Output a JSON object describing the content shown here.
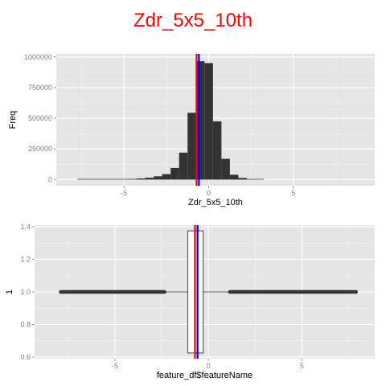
{
  "title": "Zdr_5x5_10th",
  "colors": {
    "title": "#ff0000",
    "panel_bg": "#e5e5e5",
    "grid_major": "#ffffff",
    "grid_minor": "#f2f2f2",
    "bar_fill": "#333333",
    "red_line": "#ff0000",
    "blue_line": "#0000ff",
    "box_fill": "#ffffff",
    "outline": "#333333"
  },
  "chart_data": [
    {
      "type": "bar",
      "subtype": "histogram",
      "xlabel": "Zdr_5x5_10th",
      "ylabel": "Freq",
      "xlim": [
        -9,
        9.8
      ],
      "ylim": [
        -50000,
        1025000
      ],
      "x_ticks": [
        -5,
        0,
        5
      ],
      "x_tick_labels": [
        "-5",
        "0",
        "5"
      ],
      "y_ticks": [
        0,
        250000,
        500000,
        750000,
        1000000
      ],
      "y_tick_labels": [
        "0",
        "250000",
        "500000",
        "750000",
        "1000000"
      ],
      "grid": true,
      "bin_width": 0.5,
      "bins": [
        {
          "x0": -7.75,
          "x1": -7.25,
          "count": 1000
        },
        {
          "x0": -7.25,
          "x1": -6.75,
          "count": 1000
        },
        {
          "x0": -6.75,
          "x1": -6.25,
          "count": 1500
        },
        {
          "x0": -6.25,
          "x1": -5.75,
          "count": 1500
        },
        {
          "x0": -5.75,
          "x1": -5.25,
          "count": 2000
        },
        {
          "x0": -5.25,
          "x1": -4.75,
          "count": 3000
        },
        {
          "x0": -4.75,
          "x1": -4.25,
          "count": 6000
        },
        {
          "x0": -4.25,
          "x1": -3.75,
          "count": 10000
        },
        {
          "x0": -3.75,
          "x1": -3.25,
          "count": 16000
        },
        {
          "x0": -3.25,
          "x1": -2.75,
          "count": 27000
        },
        {
          "x0": -2.75,
          "x1": -2.25,
          "count": 45000
        },
        {
          "x0": -2.25,
          "x1": -1.75,
          "count": 95000
        },
        {
          "x0": -1.75,
          "x1": -1.25,
          "count": 220000
        },
        {
          "x0": -1.25,
          "x1": -0.75,
          "count": 545000
        },
        {
          "x0": -0.75,
          "x1": -0.25,
          "count": 965000
        },
        {
          "x0": -0.25,
          "x1": 0.25,
          "count": 950000
        },
        {
          "x0": 0.25,
          "x1": 0.75,
          "count": 475000
        },
        {
          "x0": 0.75,
          "x1": 1.25,
          "count": 170000
        },
        {
          "x0": 1.25,
          "x1": 1.75,
          "count": 40000
        },
        {
          "x0": 1.75,
          "x1": 2.25,
          "count": 14000
        },
        {
          "x0": 2.25,
          "x1": 2.75,
          "count": 5000
        },
        {
          "x0": 2.75,
          "x1": 3.25,
          "count": 3000
        }
      ],
      "vlines": [
        {
          "x": -0.72,
          "color": "#ff0000"
        },
        {
          "x": -0.58,
          "color": "#0000ff"
        }
      ]
    },
    {
      "type": "boxplot",
      "xlabel": "feature_df$featureName",
      "ylabel": "1",
      "orientation": "horizontal",
      "xlim": [
        -9.3,
        8.9
      ],
      "ylim": [
        0.59,
        1.41
      ],
      "x_ticks": [
        -5,
        0,
        5
      ],
      "x_tick_labels": [
        "-5",
        "0",
        "5"
      ],
      "y_ticks": [
        0.6,
        0.8,
        1.0,
        1.2,
        1.4
      ],
      "y_tick_labels": [
        "0.6",
        "0.8",
        "1.0",
        "1.2",
        "1.4"
      ],
      "grid": true,
      "box": {
        "y": 1.0,
        "lower": 0.625,
        "upper": 1.375,
        "q1": -1.1,
        "median": -0.58,
        "q3": -0.28,
        "whisker_low": -2.3,
        "whisker_high": 1.1,
        "outliers_low": [
          -7.9,
          -2.35
        ],
        "outliers_high": [
          1.15,
          7.9
        ]
      },
      "vlines": [
        {
          "x": -0.72,
          "color": "#ff0000"
        },
        {
          "x": -0.58,
          "color": "#0000ff"
        }
      ]
    }
  ]
}
